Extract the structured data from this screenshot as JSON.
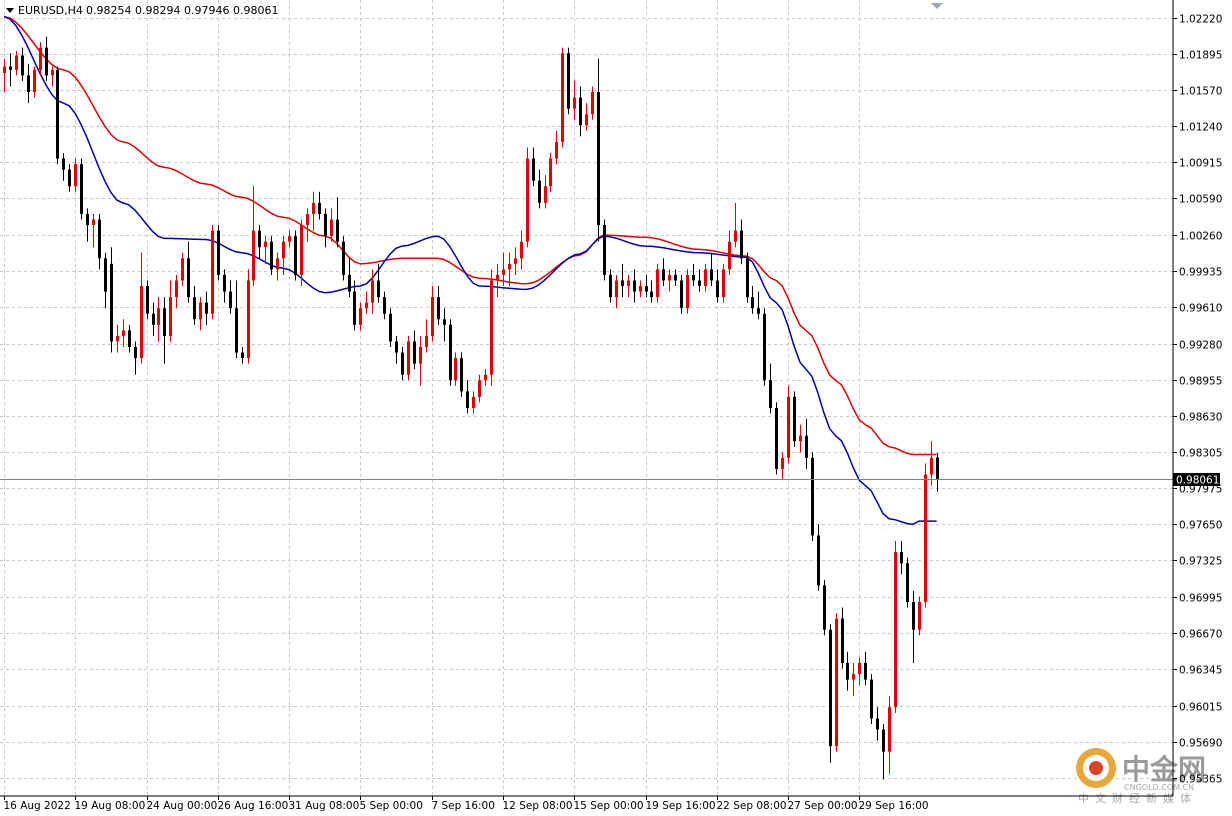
{
  "header": {
    "symbol": "EURUSD,H4",
    "ohlc": "0.98254 0.98294 0.97946 0.98061"
  },
  "price_axis": {
    "labels": [
      "1.02220",
      "1.01895",
      "1.01570",
      "1.01240",
      "1.00915",
      "1.00590",
      "1.00260",
      "0.99935",
      "0.99610",
      "0.99280",
      "0.98955",
      "0.98630",
      "0.98305",
      "0.97975",
      "0.97650",
      "0.97325",
      "0.96995",
      "0.96670",
      "0.96345",
      "0.96015",
      "0.95690",
      "0.95365"
    ],
    "current_price": "0.98061"
  },
  "time_axis": {
    "labels": [
      "16 Aug 2022",
      "19 Aug 08:00",
      "24 Aug 00:00",
      "26 Aug 16:00",
      "31 Aug 08:00",
      "5 Sep 00:00",
      "7 Sep 16:00",
      "12 Sep 08:00",
      "15 Sep 00:00",
      "19 Sep 16:00",
      "22 Sep 08:00",
      "27 Sep 00:00",
      "29 Sep 16:00"
    ]
  },
  "watermark": {
    "brand": "中金网",
    "url": "CNGOLD.COM.CN",
    "tagline": "中文财经新媒体"
  },
  "colors": {
    "bull": "#e00000",
    "bear": "#000000",
    "ma_fast": "#0000b0",
    "ma_slow": "#e00000",
    "grid": "#c8c8c8",
    "current_bg": "#000000"
  },
  "chart_data": {
    "type": "candlestick",
    "symbol": "EURUSD",
    "timeframe": "H4",
    "ylim": [
      0.952,
      1.0238
    ],
    "grid": "dashed",
    "candles": [
      [
        1.0172,
        1.0185,
        1.0155,
        1.0178
      ],
      [
        1.0178,
        1.019,
        1.016,
        1.0175
      ],
      [
        1.0175,
        1.0192,
        1.017,
        1.0188
      ],
      [
        1.0188,
        1.0195,
        1.0165,
        1.017
      ],
      [
        1.017,
        1.018,
        1.0145,
        1.0155
      ],
      [
        1.0155,
        1.0178,
        1.015,
        1.0175
      ],
      [
        1.0175,
        1.02,
        1.017,
        1.0195
      ],
      [
        1.0195,
        1.0205,
        1.0165,
        1.017
      ],
      [
        1.017,
        1.0178,
        1.016,
        1.0175
      ],
      [
        1.0175,
        1.0178,
        1.009,
        1.0095
      ],
      [
        1.0095,
        1.01,
        1.0075,
        1.0085
      ],
      [
        1.0085,
        1.009,
        1.0065,
        1.007
      ],
      [
        1.007,
        1.0095,
        1.0065,
        1.009
      ],
      [
        1.009,
        1.0095,
        1.004,
        1.0045
      ],
      [
        1.0045,
        1.005,
        1.002,
        1.0035
      ],
      [
        1.0035,
        1.0045,
        1.0015,
        1.004
      ],
      [
        1.004,
        1.0045,
        0.9995,
        1.0005
      ],
      [
        1.0005,
        1.001,
        0.996,
        0.9975
      ],
      [
        1.0,
        1.0015,
        0.992,
        0.993
      ],
      [
        0.993,
        0.9945,
        0.992,
        0.9935
      ],
      [
        0.9935,
        0.995,
        0.9925,
        0.994
      ],
      [
        0.994,
        0.9945,
        0.992,
        0.9925
      ],
      [
        0.9925,
        0.993,
        0.99,
        0.9915
      ],
      [
        0.9915,
        1.001,
        0.991,
        0.998
      ],
      [
        0.998,
        0.9985,
        0.995,
        0.9955
      ],
      [
        0.9955,
        0.9965,
        0.9935,
        0.9945
      ],
      [
        0.9945,
        0.997,
        0.993,
        0.996
      ],
      [
        0.996,
        0.997,
        0.991,
        0.9935
      ],
      [
        0.9935,
        0.9985,
        0.993,
        0.997
      ],
      [
        0.997,
        0.999,
        0.996,
        0.9985
      ],
      [
        0.9985,
        1.001,
        0.998,
        1.0005
      ],
      [
        1.0005,
        1.002,
        0.9965,
        0.997
      ],
      [
        0.997,
        0.998,
        0.9945,
        0.995
      ],
      [
        0.995,
        0.997,
        0.994,
        0.9965
      ],
      [
        0.9965,
        0.9975,
        0.9945,
        0.9955
      ],
      [
        0.9955,
        1.0035,
        0.995,
        1.003
      ],
      [
        1.003,
        1.0035,
        0.9985,
        0.999
      ],
      [
        0.999,
        0.9995,
        0.9965,
        0.9975
      ],
      [
        0.9975,
        0.9985,
        0.9955,
        0.996
      ],
      [
        0.996,
        0.9985,
        0.9915,
        0.992
      ],
      [
        0.992,
        0.9925,
        0.991,
        0.9915
      ],
      [
        0.9915,
        0.9995,
        0.991,
        0.9985
      ],
      [
        0.9985,
        1.007,
        0.998,
        1.003
      ],
      [
        1.003,
        1.0035,
        1.0005,
        1.0015
      ],
      [
        1.0015,
        1.0025,
        1.0,
        1.002
      ],
      [
        1.002,
        1.0025,
        0.999,
        0.9995
      ],
      [
        0.9995,
        1.001,
        0.9985,
        1.0005
      ],
      [
        1.0005,
        1.0025,
        0.999,
        1.002
      ],
      [
        1.002,
        1.003,
        1.0015,
        1.0025
      ],
      [
        1.0025,
        1.003,
        0.9985,
        0.999
      ],
      [
        0.999,
        1.004,
        0.998,
        1.0035
      ],
      [
        1.0035,
        1.005,
        1.002,
        1.0045
      ],
      [
        1.0045,
        1.0065,
        1.003,
        1.0055
      ],
      [
        1.0055,
        1.0065,
        1.004,
        1.0045
      ],
      [
        1.0045,
        1.005,
        1.0015,
        1.0025
      ],
      [
        1.0025,
        1.005,
        1.002,
        1.004
      ],
      [
        1.004,
        1.006,
        1.0015,
        1.002
      ],
      [
        1.002,
        1.0025,
        0.9985,
        0.999
      ],
      [
        0.999,
        1.0005,
        0.997,
        0.9975
      ],
      [
        0.9975,
        0.9985,
        0.994,
        0.9945
      ],
      [
        0.9945,
        0.9965,
        0.994,
        0.996
      ],
      [
        0.996,
        0.9975,
        0.9955,
        0.9965
      ],
      [
        0.9965,
        0.9995,
        0.9955,
        0.9985
      ],
      [
        0.9985,
        1.0,
        0.9965,
        0.997
      ],
      [
        0.997,
        0.9975,
        0.995,
        0.9955
      ],
      [
        0.9955,
        0.996,
        0.9925,
        0.993
      ],
      [
        0.993,
        0.9935,
        0.991,
        0.992
      ],
      [
        0.992,
        0.9925,
        0.9895,
        0.99
      ],
      [
        0.99,
        0.9935,
        0.9895,
        0.993
      ],
      [
        0.993,
        0.994,
        0.9905,
        0.991
      ],
      [
        0.991,
        0.9935,
        0.989,
        0.9925
      ],
      [
        0.9925,
        0.995,
        0.992,
        0.9935
      ],
      [
        0.9935,
        0.998,
        0.993,
        0.997
      ],
      [
        0.997,
        0.998,
        0.9945,
        0.995
      ],
      [
        0.995,
        0.996,
        0.993,
        0.9945
      ],
      [
        0.9945,
        0.995,
        0.989,
        0.9895
      ],
      [
        0.9895,
        0.992,
        0.989,
        0.9915
      ],
      [
        0.9915,
        0.992,
        0.988,
        0.9885
      ],
      [
        0.9885,
        0.9895,
        0.9865,
        0.987
      ],
      [
        0.987,
        0.9885,
        0.9865,
        0.988
      ],
      [
        0.988,
        0.99,
        0.9875,
        0.9895
      ],
      [
        0.9895,
        0.9905,
        0.989,
        0.99
      ],
      [
        0.99,
        0.9995,
        0.989,
        0.9985
      ],
      [
        0.9985,
        1.0,
        0.997,
        0.999
      ],
      [
        0.999,
        1.001,
        0.998,
        0.9995
      ],
      [
        0.9995,
        1.001,
        0.998,
        1.0
      ],
      [
        1.0,
        1.0015,
        0.999,
        1.0005
      ],
      [
        1.0005,
        1.003,
        0.9995,
        1.002
      ],
      [
        1.002,
        1.0105,
        1.0015,
        1.0095
      ],
      [
        1.0095,
        1.0105,
        1.007,
        1.0075
      ],
      [
        1.0075,
        1.0085,
        1.005,
        1.0055
      ],
      [
        1.0055,
        1.008,
        1.005,
        1.007
      ],
      [
        1.007,
        1.01,
        1.0065,
        1.0095
      ],
      [
        1.0095,
        1.012,
        1.009,
        1.011
      ],
      [
        1.011,
        1.0195,
        1.0105,
        1.019
      ],
      [
        1.019,
        1.0195,
        1.0135,
        1.014
      ],
      [
        1.014,
        1.0165,
        1.013,
        1.015
      ],
      [
        1.015,
        1.016,
        1.0115,
        1.0125
      ],
      [
        1.0125,
        1.0145,
        1.012,
        1.0135
      ],
      [
        1.0135,
        1.016,
        1.013,
        1.0155
      ],
      [
        1.0155,
        1.0185,
        1.002,
        1.0035
      ],
      [
        1.0035,
        1.004,
        0.9985,
        0.999
      ],
      [
        0.999,
        0.9995,
        0.9965,
        0.997
      ],
      [
        0.997,
        0.999,
        0.996,
        0.9985
      ],
      [
        0.9985,
        1.0,
        0.997,
        0.998
      ],
      [
        0.998,
        0.999,
        0.997,
        0.9985
      ],
      [
        0.9985,
        0.9995,
        0.9965,
        0.9975
      ],
      [
        0.9975,
        0.9985,
        0.997,
        0.998
      ],
      [
        0.998,
        0.999,
        0.997,
        0.9975
      ],
      [
        0.9975,
        0.9985,
        0.9965,
        0.997
      ],
      [
        0.997,
        1.0,
        0.9965,
        0.9995
      ],
      [
        0.9995,
        1.0005,
        0.998,
        0.9985
      ],
      [
        0.9985,
        0.9995,
        0.9975,
        0.999
      ],
      [
        0.999,
        0.9995,
        0.998,
        0.9985
      ],
      [
        0.9985,
        0.999,
        0.9955,
        0.996
      ],
      [
        0.996,
        0.9995,
        0.9955,
        0.999
      ],
      [
        0.999,
        1.0,
        0.998,
        0.9985
      ],
      [
        0.9985,
        0.9995,
        0.9975,
        0.998
      ],
      [
        0.998,
        1.0,
        0.9975,
        0.9995
      ],
      [
        0.9995,
        1.001,
        0.998,
        0.9985
      ],
      [
        0.9985,
        0.9995,
        0.9965,
        0.997
      ],
      [
        0.997,
        1.0,
        0.9965,
        0.9995
      ],
      [
        0.9995,
        1.003,
        0.999,
        1.002
      ],
      [
        1.002,
        1.0055,
        1.0015,
        1.003
      ],
      [
        1.003,
        1.004,
        1.0,
        1.0005
      ],
      [
        1.0005,
        1.001,
        0.9965,
        0.997
      ],
      [
        0.997,
        0.998,
        0.9955,
        0.996
      ],
      [
        0.996,
        0.9975,
        0.995,
        0.9955
      ],
      [
        0.9955,
        0.996,
        0.989,
        0.9895
      ],
      [
        0.9895,
        0.991,
        0.9865,
        0.987
      ],
      [
        0.987,
        0.9875,
        0.981,
        0.9815
      ],
      [
        0.9815,
        0.983,
        0.9805,
        0.9825
      ],
      [
        0.9825,
        0.989,
        0.982,
        0.988
      ],
      [
        0.988,
        0.9885,
        0.9835,
        0.984
      ],
      [
        0.984,
        0.9855,
        0.983,
        0.9845
      ],
      [
        0.9845,
        0.986,
        0.9815,
        0.9825
      ],
      [
        0.9825,
        0.983,
        0.975,
        0.9755
      ],
      [
        0.9755,
        0.9765,
        0.9705,
        0.971
      ],
      [
        0.971,
        0.9715,
        0.9665,
        0.967
      ],
      [
        0.967,
        0.9675,
        0.955,
        0.9565
      ],
      [
        0.9565,
        0.9685,
        0.956,
        0.968
      ],
      [
        0.968,
        0.969,
        0.9635,
        0.964
      ],
      [
        0.964,
        0.965,
        0.9615,
        0.9625
      ],
      [
        0.9625,
        0.964,
        0.961,
        0.963
      ],
      [
        0.963,
        0.9645,
        0.962,
        0.964
      ],
      [
        0.964,
        0.965,
        0.962,
        0.9625
      ],
      [
        0.9625,
        0.963,
        0.9585,
        0.959
      ],
      [
        0.959,
        0.96,
        0.957,
        0.958
      ],
      [
        0.958,
        0.9585,
        0.9535,
        0.956
      ],
      [
        0.956,
        0.961,
        0.954,
        0.96
      ],
      [
        0.96,
        0.975,
        0.9595,
        0.974
      ],
      [
        0.974,
        0.975,
        0.972,
        0.973
      ],
      [
        0.973,
        0.9735,
        0.969,
        0.9695
      ],
      [
        0.9695,
        0.9705,
        0.964,
        0.967
      ],
      [
        0.967,
        0.97,
        0.9665,
        0.9695
      ],
      [
        0.9695,
        0.982,
        0.969,
        0.981
      ],
      [
        0.981,
        0.984,
        0.98,
        0.9825
      ],
      [
        0.98254,
        0.98294,
        0.97946,
        0.98061
      ]
    ],
    "ma_fast_anchors": [
      [
        0,
        1.0223
      ],
      [
        10,
        1.0145
      ],
      [
        20,
        1.0055
      ],
      [
        27,
        1.0023
      ],
      [
        34,
        1.0022
      ],
      [
        40,
        1.001
      ],
      [
        47,
        0.9996
      ],
      [
        54,
        0.9974
      ],
      [
        60,
        0.998
      ],
      [
        67,
        1.0016
      ],
      [
        73,
        1.0025
      ],
      [
        80,
        0.998
      ],
      [
        88,
        0.9977
      ],
      [
        97,
        1.0009
      ],
      [
        101,
        1.0025
      ],
      [
        108,
        1.0016
      ],
      [
        117,
        1.001
      ],
      [
        125,
        1.0006
      ],
      [
        130,
        0.9965
      ],
      [
        135,
        0.9905
      ],
      [
        140,
        0.9845
      ],
      [
        145,
        0.98
      ],
      [
        149,
        0.977
      ],
      [
        153,
        0.9765
      ],
      [
        154,
        0.9768
      ]
    ],
    "ma_slow_anchors": [
      [
        0,
        1.0223
      ],
      [
        10,
        1.0175
      ],
      [
        20,
        1.011
      ],
      [
        27,
        1.0087
      ],
      [
        34,
        1.0072
      ],
      [
        40,
        1.006
      ],
      [
        47,
        1.0042
      ],
      [
        54,
        1.0025
      ],
      [
        60,
        1.0
      ],
      [
        67,
        1.0005
      ],
      [
        73,
        1.0005
      ],
      [
        80,
        0.9987
      ],
      [
        88,
        0.9982
      ],
      [
        97,
        1.0008
      ],
      [
        101,
        1.0026
      ],
      [
        108,
        1.0024
      ],
      [
        117,
        1.0013
      ],
      [
        125,
        1.0007
      ],
      [
        130,
        0.9985
      ],
      [
        135,
        0.994
      ],
      [
        140,
        0.9895
      ],
      [
        145,
        0.9855
      ],
      [
        149,
        0.9835
      ],
      [
        153,
        0.9828
      ],
      [
        154,
        0.9828
      ]
    ]
  }
}
